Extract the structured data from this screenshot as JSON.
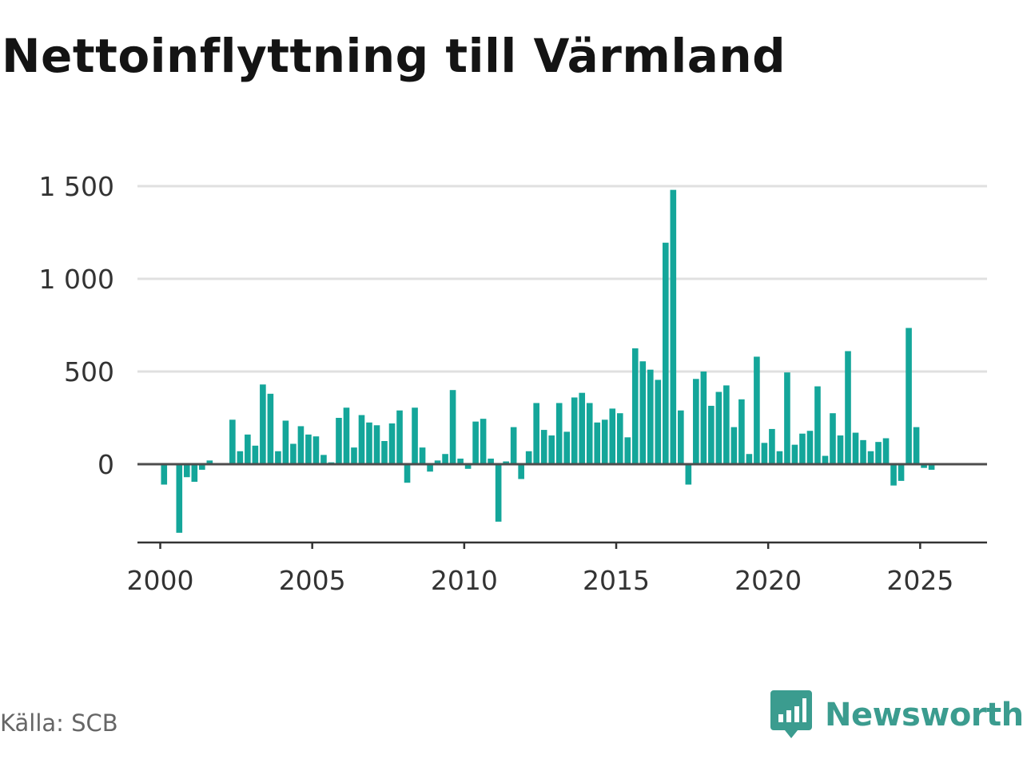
{
  "chart_data": {
    "type": "bar",
    "title": "Nettoinflyttning till Värmland",
    "xlabel": "",
    "ylabel": "",
    "x_range": [
      1999.25,
      2027.2
    ],
    "ylim": [
      -420,
      1500
    ],
    "yticks": [
      {
        "value": 1500,
        "label": "1 500"
      },
      {
        "value": 1000,
        "label": "1 000"
      },
      {
        "value": 500,
        "label": "500"
      },
      {
        "value": 0,
        "label": "0"
      }
    ],
    "xticks": [
      {
        "value": 2000,
        "label": "2000"
      },
      {
        "value": 2005,
        "label": "2005"
      },
      {
        "value": 2010,
        "label": "2010"
      },
      {
        "value": 2015,
        "label": "2015"
      },
      {
        "value": 2020,
        "label": "2020"
      },
      {
        "value": 2025,
        "label": "2025"
      }
    ],
    "grid": true,
    "bar_color": "#14a69a",
    "gridline_color": "#e0e0e0",
    "zero_line_color": "#4d4d4d",
    "series": [
      {
        "x": [
          2000.125,
          2000.375,
          2000.625,
          2000.875,
          2001.125,
          2001.375,
          2001.625,
          2001.875,
          2002.125,
          2002.375,
          2002.625,
          2002.875,
          2003.125,
          2003.375,
          2003.625,
          2003.875,
          2004.125,
          2004.375,
          2004.625,
          2004.875,
          2005.125,
          2005.375,
          2005.625,
          2005.875,
          2006.125,
          2006.375,
          2006.625,
          2006.875,
          2007.125,
          2007.375,
          2007.625,
          2007.875,
          2008.125,
          2008.375,
          2008.625,
          2008.875,
          2009.125,
          2009.375,
          2009.625,
          2009.875,
          2010.125,
          2010.375,
          2010.625,
          2010.875,
          2011.125,
          2011.375,
          2011.625,
          2011.875,
          2012.125,
          2012.375,
          2012.625,
          2012.875,
          2013.125,
          2013.375,
          2013.625,
          2013.875,
          2014.125,
          2014.375,
          2014.625,
          2014.875,
          2015.125,
          2015.375,
          2015.625,
          2015.875,
          2016.125,
          2016.375,
          2016.625,
          2016.875,
          2017.125,
          2017.375,
          2017.625,
          2017.875,
          2018.125,
          2018.375,
          2018.625,
          2018.875,
          2019.125,
          2019.375,
          2019.625,
          2019.875,
          2020.125,
          2020.375,
          2020.625,
          2020.875,
          2021.125,
          2021.375,
          2021.625,
          2021.875,
          2022.125,
          2022.375,
          2022.625,
          2022.875,
          2023.125,
          2023.375,
          2023.625,
          2023.875,
          2024.125,
          2024.375,
          2024.625,
          2024.875,
          2025.125,
          2025.375
        ],
        "values": [
          -110,
          -5,
          -370,
          -70,
          -95,
          -30,
          20,
          0,
          0,
          240,
          70,
          160,
          100,
          430,
          380,
          70,
          235,
          110,
          205,
          160,
          150,
          50,
          10,
          250,
          305,
          90,
          265,
          225,
          210,
          125,
          220,
          290,
          -100,
          305,
          90,
          -40,
          20,
          55,
          400,
          30,
          -25,
          230,
          245,
          30,
          -310,
          15,
          200,
          -80,
          70,
          330,
          185,
          155,
          330,
          175,
          360,
          385,
          330,
          225,
          240,
          300,
          275,
          145,
          625,
          555,
          510,
          455,
          1195,
          1480,
          290,
          -110,
          460,
          500,
          315,
          390,
          425,
          200,
          350,
          55,
          580,
          115,
          190,
          70,
          495,
          105,
          165,
          180,
          420,
          45,
          275,
          155,
          610,
          170,
          130,
          70,
          120,
          140,
          -115,
          -90,
          735,
          200,
          -20,
          -30
        ]
      }
    ]
  },
  "source": "Källa: SCB",
  "brand": {
    "name": "Newsworthy",
    "logo_icon": "newsworthy-logo-icon",
    "color": "#3b9c8f"
  }
}
